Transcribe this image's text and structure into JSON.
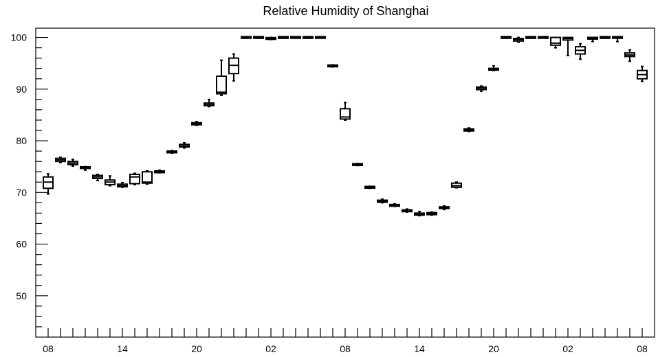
{
  "chart_data": {
    "type": "box",
    "title": "Relative Humidity of Shanghai",
    "xlabel": "",
    "ylabel": "",
    "ylim": [
      42,
      101.8
    ],
    "yticks": [
      50,
      60,
      70,
      80,
      90,
      100
    ],
    "xlim": [
      0,
      49
    ],
    "x_tick_labels": [
      {
        "index": 0,
        "label": "08"
      },
      {
        "index": 6,
        "label": "14"
      },
      {
        "index": 12,
        "label": "20"
      },
      {
        "index": 18,
        "label": "02"
      },
      {
        "index": 24,
        "label": "08"
      },
      {
        "index": 30,
        "label": "14"
      },
      {
        "index": 36,
        "label": "20"
      },
      {
        "index": 42,
        "label": "02"
      },
      {
        "index": 48,
        "label": "08"
      }
    ],
    "boxes": [
      {
        "index": 0,
        "min": 69.7,
        "q1": 70.8,
        "median": 72.0,
        "q3": 73.0,
        "max": 73.6
      },
      {
        "index": 1,
        "min": 75.8,
        "q1": 76.0,
        "median": 76.3,
        "q3": 76.6,
        "max": 76.8
      },
      {
        "index": 2,
        "min": 75.1,
        "q1": 75.4,
        "median": 75.7,
        "q3": 76.0,
        "max": 76.4
      },
      {
        "index": 3,
        "min": 74.3,
        "q1": 74.7,
        "median": 74.8,
        "q3": 74.9,
        "max": 75.0
      },
      {
        "index": 4,
        "min": 72.3,
        "q1": 72.7,
        "median": 73.0,
        "q3": 73.3,
        "max": 73.5
      },
      {
        "index": 5,
        "min": 71.3,
        "q1": 71.5,
        "median": 72.0,
        "q3": 72.4,
        "max": 73.2
      },
      {
        "index": 6,
        "min": 71.0,
        "q1": 71.1,
        "median": 71.3,
        "q3": 71.6,
        "max": 71.9
      },
      {
        "index": 7,
        "min": 71.5,
        "q1": 71.7,
        "median": 73.0,
        "q3": 73.5,
        "max": 73.7
      },
      {
        "index": 8,
        "min": 71.6,
        "q1": 71.8,
        "median": 72.0,
        "q3": 74.0,
        "max": 74.2
      },
      {
        "index": 9,
        "min": 73.8,
        "q1": 73.9,
        "median": 74.0,
        "q3": 74.1,
        "max": 74.3
      },
      {
        "index": 10,
        "min": 77.6,
        "q1": 77.7,
        "median": 77.8,
        "q3": 78.0,
        "max": 78.1
      },
      {
        "index": 11,
        "min": 78.6,
        "q1": 78.8,
        "median": 79.0,
        "q3": 79.3,
        "max": 79.6
      },
      {
        "index": 12,
        "min": 83.0,
        "q1": 83.1,
        "median": 83.3,
        "q3": 83.5,
        "max": 83.7
      },
      {
        "index": 13,
        "min": 86.6,
        "q1": 86.8,
        "median": 87.0,
        "q3": 87.3,
        "max": 88.0
      },
      {
        "index": 14,
        "min": 88.8,
        "q1": 89.1,
        "median": 89.4,
        "q3": 92.5,
        "max": 95.6
      },
      {
        "index": 15,
        "min": 91.6,
        "q1": 93.0,
        "median": 94.6,
        "q3": 96.0,
        "max": 96.8
      },
      {
        "index": 16,
        "min": 100,
        "q1": 100,
        "median": 100,
        "q3": 100,
        "max": 100
      },
      {
        "index": 17,
        "min": 100,
        "q1": 100,
        "median": 100,
        "q3": 100,
        "max": 100
      },
      {
        "index": 18,
        "min": 99.6,
        "q1": 99.7,
        "median": 99.8,
        "q3": 99.9,
        "max": 100
      },
      {
        "index": 19,
        "min": 100,
        "q1": 100,
        "median": 100,
        "q3": 100,
        "max": 100
      },
      {
        "index": 20,
        "min": 100,
        "q1": 100,
        "median": 100,
        "q3": 100,
        "max": 100
      },
      {
        "index": 21,
        "min": 100,
        "q1": 100,
        "median": 100,
        "q3": 100,
        "max": 100
      },
      {
        "index": 22,
        "min": 100,
        "q1": 100,
        "median": 100,
        "q3": 100,
        "max": 100
      },
      {
        "index": 23,
        "min": 94.3,
        "q1": 94.4,
        "median": 94.5,
        "q3": 94.6,
        "max": 94.7
      },
      {
        "index": 24,
        "min": 84.0,
        "q1": 84.2,
        "median": 84.6,
        "q3": 86.2,
        "max": 87.4
      },
      {
        "index": 25,
        "min": 75.2,
        "q1": 75.3,
        "median": 75.4,
        "q3": 75.5,
        "max": 75.6
      },
      {
        "index": 26,
        "min": 70.8,
        "q1": 70.9,
        "median": 71.0,
        "q3": 71.1,
        "max": 71.2
      },
      {
        "index": 27,
        "min": 68.0,
        "q1": 68.1,
        "median": 68.3,
        "q3": 68.5,
        "max": 68.7
      },
      {
        "index": 28,
        "min": 67.3,
        "q1": 67.4,
        "median": 67.5,
        "q3": 67.6,
        "max": 67.8
      },
      {
        "index": 29,
        "min": 66.2,
        "q1": 66.3,
        "median": 66.5,
        "q3": 66.6,
        "max": 66.8
      },
      {
        "index": 30,
        "min": 65.5,
        "q1": 65.6,
        "median": 65.8,
        "q3": 66.0,
        "max": 66.3
      },
      {
        "index": 31,
        "min": 65.6,
        "q1": 65.7,
        "median": 65.9,
        "q3": 66.1,
        "max": 66.2
      },
      {
        "index": 32,
        "min": 66.7,
        "q1": 66.9,
        "median": 67.1,
        "q3": 67.2,
        "max": 67.4
      },
      {
        "index": 33,
        "min": 70.9,
        "q1": 71.0,
        "median": 71.3,
        "q3": 71.8,
        "max": 72.0
      },
      {
        "index": 34,
        "min": 81.8,
        "q1": 81.9,
        "median": 82.1,
        "q3": 82.3,
        "max": 82.5
      },
      {
        "index": 35,
        "min": 89.6,
        "q1": 89.9,
        "median": 90.2,
        "q3": 90.4,
        "max": 90.6
      },
      {
        "index": 36,
        "min": 93.6,
        "q1": 93.7,
        "median": 93.9,
        "q3": 94.0,
        "max": 94.5
      },
      {
        "index": 37,
        "min": 100,
        "q1": 100,
        "median": 100,
        "q3": 100,
        "max": 100
      },
      {
        "index": 38,
        "min": 99.1,
        "q1": 99.3,
        "median": 99.6,
        "q3": 99.8,
        "max": 100
      },
      {
        "index": 39,
        "min": 100,
        "q1": 100,
        "median": 100,
        "q3": 100,
        "max": 100
      },
      {
        "index": 40,
        "min": 100,
        "q1": 100,
        "median": 100,
        "q3": 100,
        "max": 100
      },
      {
        "index": 41,
        "min": 98.0,
        "q1": 98.5,
        "median": 98.9,
        "q3": 100,
        "max": 100
      },
      {
        "index": 42,
        "min": 96.5,
        "q1": 99.5,
        "median": 99.8,
        "q3": 100,
        "max": 100
      },
      {
        "index": 43,
        "min": 95.8,
        "q1": 96.8,
        "median": 97.5,
        "q3": 98.2,
        "max": 98.8
      },
      {
        "index": 44,
        "min": 99.2,
        "q1": 99.7,
        "median": 99.9,
        "q3": 100,
        "max": 100
      },
      {
        "index": 45,
        "min": 100,
        "q1": 100,
        "median": 100,
        "q3": 100,
        "max": 100
      },
      {
        "index": 46,
        "min": 99.2,
        "q1": 100,
        "median": 100,
        "q3": 100,
        "max": 100
      },
      {
        "index": 47,
        "min": 95.4,
        "q1": 96.3,
        "median": 96.6,
        "q3": 97.0,
        "max": 97.6
      },
      {
        "index": 48,
        "min": 91.5,
        "q1": 92.0,
        "median": 92.8,
        "q3": 93.6,
        "max": 94.4
      }
    ]
  }
}
